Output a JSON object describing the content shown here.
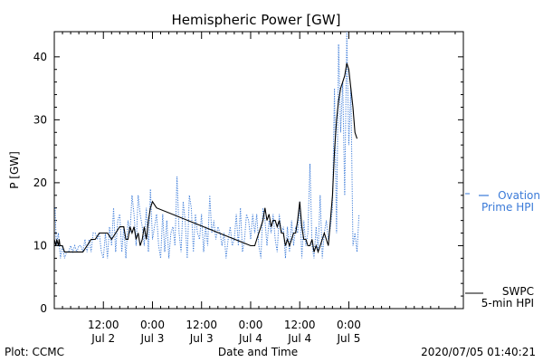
{
  "chart_data": {
    "type": "line",
    "title": "Hemispheric Power [GW]",
    "ylabel": "P [GW]",
    "xlabel": "Date and Time",
    "ylim": [
      0,
      44
    ],
    "xlim": [
      0,
      100
    ],
    "y_ticks": [
      0,
      10,
      20,
      30,
      40
    ],
    "x_ticks": [
      {
        "x": 12,
        "time": "12:00",
        "date": "Jul 2"
      },
      {
        "x": 24,
        "time": "0:00",
        "date": "Jul 3"
      },
      {
        "x": 36,
        "time": "12:00",
        "date": "Jul 3"
      },
      {
        "x": 48,
        "time": "0:00",
        "date": "Jul 4"
      },
      {
        "x": 60,
        "time": "12:00",
        "date": "Jul 4"
      },
      {
        "x": 72,
        "time": "0:00",
        "date": "Jul 5"
      }
    ],
    "x_units": "hours since Jul 2 00:00",
    "series": [
      {
        "name": "Ovation Prime HPI",
        "legend_line1": "Ovation",
        "legend_line2": "Prime HPI",
        "color": "#3a7ad8",
        "style": "dotted",
        "points": [
          [
            0.2,
            16
          ],
          [
            0.5,
            10
          ],
          [
            1,
            12
          ],
          [
            1.5,
            8
          ],
          [
            2,
            10
          ],
          [
            2.5,
            8
          ],
          [
            3,
            9
          ],
          [
            3.5,
            9
          ],
          [
            4,
            10
          ],
          [
            4.5,
            9
          ],
          [
            5,
            10
          ],
          [
            5.5,
            9
          ],
          [
            6,
            10
          ],
          [
            6.5,
            10
          ],
          [
            7,
            9
          ],
          [
            7.5,
            11
          ],
          [
            8,
            9
          ],
          [
            8.5,
            11
          ],
          [
            9,
            9
          ],
          [
            9.5,
            12
          ],
          [
            10,
            12
          ],
          [
            10.5,
            11
          ],
          [
            11,
            12
          ],
          [
            11.5,
            9
          ],
          [
            12,
            8
          ],
          [
            12.5,
            12
          ],
          [
            13,
            8
          ],
          [
            13.5,
            13
          ],
          [
            14,
            10
          ],
          [
            14.5,
            16
          ],
          [
            15,
            9
          ],
          [
            15.5,
            14
          ],
          [
            16,
            15
          ],
          [
            16.5,
            9
          ],
          [
            17,
            13
          ],
          [
            17.5,
            8
          ],
          [
            18,
            14
          ],
          [
            18.5,
            12
          ],
          [
            19,
            18
          ],
          [
            19.5,
            15
          ],
          [
            20,
            10
          ],
          [
            20.5,
            18
          ],
          [
            21,
            15
          ],
          [
            21.5,
            13
          ],
          [
            22,
            10
          ],
          [
            22.5,
            16
          ],
          [
            23,
            9
          ],
          [
            23.5,
            19
          ],
          [
            24,
            11
          ],
          [
            24.5,
            13
          ],
          [
            25,
            15
          ],
          [
            25.5,
            10
          ],
          [
            26,
            8
          ],
          [
            26.5,
            15
          ],
          [
            27,
            9
          ],
          [
            27.5,
            14
          ],
          [
            28,
            8
          ],
          [
            28.5,
            12
          ],
          [
            29,
            13
          ],
          [
            29.5,
            10
          ],
          [
            30,
            21
          ],
          [
            30.5,
            12
          ],
          [
            31,
            9
          ],
          [
            31.5,
            17
          ],
          [
            32,
            14
          ],
          [
            32.5,
            8
          ],
          [
            33,
            18
          ],
          [
            33.5,
            16
          ],
          [
            34,
            9
          ],
          [
            34.5,
            15
          ],
          [
            35,
            12
          ],
          [
            35.5,
            11
          ],
          [
            36,
            15
          ],
          [
            36.5,
            9
          ],
          [
            37,
            13
          ],
          [
            37.5,
            10
          ],
          [
            38,
            18
          ],
          [
            38.5,
            12
          ],
          [
            39,
            14
          ],
          [
            39.5,
            11
          ],
          [
            40,
            13
          ],
          [
            40.5,
            12
          ],
          [
            41,
            10
          ],
          [
            41.5,
            12
          ],
          [
            42,
            8
          ],
          [
            42.5,
            11
          ],
          [
            43,
            13
          ],
          [
            43.5,
            10
          ],
          [
            44,
            11
          ],
          [
            44.5,
            15
          ],
          [
            45,
            10
          ],
          [
            45.5,
            16
          ],
          [
            46,
            9
          ],
          [
            46.5,
            11
          ],
          [
            47,
            15
          ],
          [
            47.5,
            14
          ],
          [
            48,
            11
          ],
          [
            48.5,
            15
          ],
          [
            49,
            12
          ],
          [
            49.5,
            15
          ],
          [
            50,
            10
          ],
          [
            50.5,
            8
          ],
          [
            51,
            16
          ],
          [
            51.5,
            14
          ],
          [
            52,
            10
          ],
          [
            52.5,
            14
          ],
          [
            53,
            12
          ],
          [
            53.5,
            15
          ],
          [
            54,
            11
          ],
          [
            54.5,
            9
          ],
          [
            55,
            15
          ],
          [
            55.5,
            12
          ],
          [
            56,
            13
          ],
          [
            56.5,
            8
          ],
          [
            57,
            13
          ],
          [
            57.5,
            9
          ],
          [
            58,
            14
          ],
          [
            58.5,
            10
          ],
          [
            59,
            13
          ],
          [
            59.5,
            12
          ],
          [
            60,
            17
          ],
          [
            60.5,
            8
          ],
          [
            61,
            14
          ],
          [
            61.5,
            10
          ],
          [
            62,
            12
          ],
          [
            62.5,
            23
          ],
          [
            63,
            10
          ],
          [
            63.5,
            8
          ],
          [
            64,
            13
          ],
          [
            64.5,
            9
          ],
          [
            65,
            18
          ],
          [
            65.5,
            8
          ],
          [
            66,
            12
          ],
          [
            66.5,
            14
          ],
          [
            67,
            11
          ],
          [
            67.5,
            13
          ],
          [
            68,
            16
          ],
          [
            68.5,
            35
          ],
          [
            69,
            12
          ],
          [
            69.5,
            42
          ],
          [
            70,
            28
          ],
          [
            70.5,
            36
          ],
          [
            71,
            18
          ],
          [
            71.5,
            44
          ],
          [
            72,
            26
          ],
          [
            72.5,
            35
          ],
          [
            73,
            10
          ],
          [
            73.5,
            12
          ],
          [
            74,
            9
          ],
          [
            74.5,
            15
          ]
        ]
      },
      {
        "name": "SWPC 5-min HPI",
        "legend_line1": "SWPC",
        "legend_line2": "5-min HPI",
        "color": "#000000",
        "style": "solid",
        "points": [
          [
            0,
            11
          ],
          [
            0.4,
            10
          ],
          [
            0.6,
            11
          ],
          [
            1,
            10
          ],
          [
            1.2,
            11
          ],
          [
            1.4,
            10
          ],
          [
            2,
            10
          ],
          [
            2.5,
            9
          ],
          [
            3,
            9
          ],
          [
            3.5,
            9
          ],
          [
            4,
            9
          ],
          [
            5,
            9
          ],
          [
            6,
            9
          ],
          [
            7,
            9
          ],
          [
            8,
            10
          ],
          [
            9,
            11
          ],
          [
            10,
            11
          ],
          [
            11,
            12
          ],
          [
            12,
            12
          ],
          [
            13,
            12
          ],
          [
            14,
            11
          ],
          [
            15,
            12
          ],
          [
            16,
            13
          ],
          [
            17,
            13
          ],
          [
            17.5,
            11
          ],
          [
            18,
            11
          ],
          [
            18.5,
            13
          ],
          [
            19,
            12
          ],
          [
            19.5,
            13
          ],
          [
            20,
            11
          ],
          [
            20.5,
            12
          ],
          [
            21,
            10
          ],
          [
            21.5,
            11
          ],
          [
            22,
            13
          ],
          [
            22.5,
            11
          ],
          [
            23,
            14
          ],
          [
            23.5,
            16
          ],
          [
            24,
            17
          ],
          [
            25,
            16
          ],
          [
            48,
            10
          ],
          [
            48.5,
            10
          ],
          [
            49,
            10
          ],
          [
            49.5,
            11
          ],
          [
            50,
            12
          ],
          [
            50.5,
            13
          ],
          [
            51,
            14
          ],
          [
            51.5,
            16
          ],
          [
            52,
            14
          ],
          [
            52.5,
            15
          ],
          [
            53,
            13
          ],
          [
            53.5,
            14
          ],
          [
            54,
            14
          ],
          [
            54.5,
            13
          ],
          [
            55,
            14
          ],
          [
            55.5,
            12
          ],
          [
            56,
            12
          ],
          [
            56.5,
            10
          ],
          [
            57,
            11
          ],
          [
            57.5,
            10
          ],
          [
            58,
            11
          ],
          [
            58.5,
            12
          ],
          [
            59,
            12
          ],
          [
            59.5,
            14
          ],
          [
            60,
            17
          ],
          [
            60.5,
            13
          ],
          [
            61,
            11
          ],
          [
            61.5,
            11
          ],
          [
            62,
            10
          ],
          [
            62.5,
            10
          ],
          [
            63,
            11
          ],
          [
            63.5,
            9
          ],
          [
            64,
            10
          ],
          [
            64.5,
            9
          ],
          [
            65,
            10
          ],
          [
            65.5,
            11
          ],
          [
            66,
            12
          ],
          [
            66.5,
            11
          ],
          [
            67,
            10
          ],
          [
            67.5,
            14
          ],
          [
            68,
            18
          ],
          [
            68.5,
            25
          ],
          [
            69,
            30
          ],
          [
            69.5,
            33
          ],
          [
            70,
            35
          ],
          [
            70.5,
            36
          ],
          [
            71,
            37
          ],
          [
            71.5,
            39
          ],
          [
            72,
            38
          ],
          [
            72.5,
            35
          ],
          [
            73,
            32
          ],
          [
            73.5,
            28
          ],
          [
            74,
            27
          ]
        ]
      }
    ]
  },
  "footer": {
    "left": "Plot: CCMC",
    "right": "2020/07/05 01:40:21"
  }
}
